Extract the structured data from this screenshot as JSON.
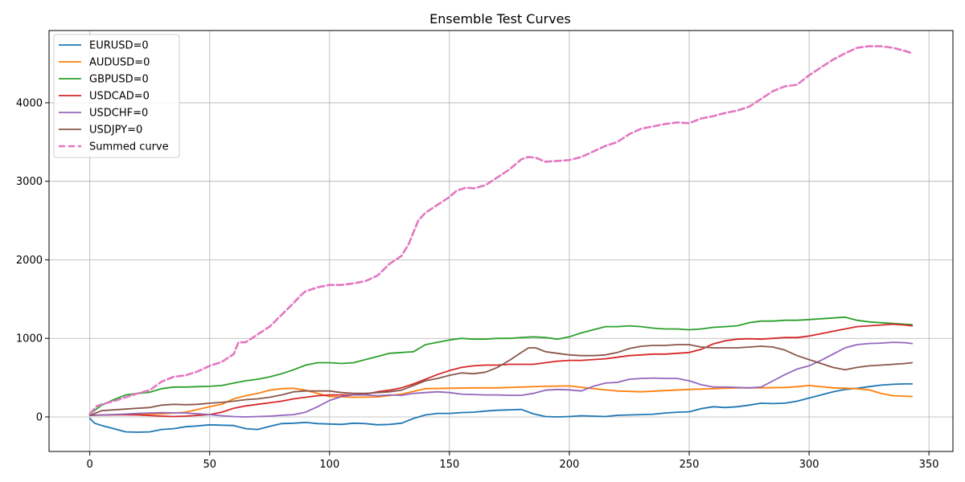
{
  "chart_data": {
    "type": "line",
    "title": "Ensemble Test Curves",
    "xlabel": "",
    "ylabel": "",
    "xlim": [
      -17,
      360
    ],
    "ylim": [
      -440,
      4920
    ],
    "xticks": [
      0,
      50,
      100,
      150,
      200,
      250,
      300,
      350
    ],
    "yticks": [
      0,
      1000,
      2000,
      3000,
      4000
    ],
    "grid": true,
    "legend_position": "top-left",
    "series": [
      {
        "name": "EURUSD=0",
        "color": "#1f77b4",
        "style": "solid",
        "x": [
          0,
          2,
          5,
          10,
          15,
          20,
          25,
          30,
          35,
          40,
          45,
          50,
          55,
          60,
          65,
          70,
          75,
          80,
          85,
          90,
          95,
          100,
          105,
          110,
          115,
          120,
          125,
          130,
          135,
          140,
          145,
          150,
          155,
          160,
          165,
          170,
          175,
          180,
          185,
          190,
          195,
          200,
          205,
          210,
          215,
          220,
          225,
          230,
          235,
          240,
          245,
          250,
          255,
          260,
          265,
          270,
          275,
          280,
          285,
          290,
          295,
          300,
          305,
          310,
          315,
          320,
          325,
          330,
          335,
          340,
          343
        ],
        "y": [
          -20,
          -80,
          -110,
          -150,
          -190,
          -195,
          -190,
          -160,
          -150,
          -125,
          -115,
          -100,
          -105,
          -110,
          -150,
          -160,
          -120,
          -85,
          -80,
          -70,
          -85,
          -90,
          -95,
          -80,
          -85,
          -100,
          -95,
          -80,
          -20,
          25,
          45,
          45,
          55,
          60,
          75,
          85,
          90,
          95,
          40,
          5,
          0,
          5,
          15,
          10,
          5,
          20,
          25,
          30,
          35,
          50,
          60,
          65,
          105,
          130,
          120,
          130,
          150,
          175,
          170,
          175,
          200,
          240,
          280,
          320,
          350,
          365,
          385,
          405,
          415,
          420,
          420
        ]
      },
      {
        "name": "AUDUSD=0",
        "color": "#ff7f0e",
        "style": "solid",
        "x": [
          0,
          10,
          20,
          30,
          40,
          50,
          55,
          60,
          65,
          70,
          75,
          80,
          85,
          90,
          95,
          100,
          110,
          120,
          130,
          140,
          150,
          160,
          170,
          180,
          190,
          200,
          210,
          220,
          230,
          240,
          250,
          260,
          270,
          280,
          290,
          295,
          300,
          310,
          320,
          325,
          330,
          335,
          343
        ],
        "y": [
          20,
          25,
          35,
          40,
          60,
          130,
          160,
          230,
          270,
          300,
          340,
          360,
          365,
          340,
          300,
          260,
          250,
          255,
          290,
          360,
          365,
          370,
          370,
          380,
          390,
          395,
          360,
          330,
          320,
          335,
          350,
          360,
          370,
          370,
          375,
          385,
          400,
          370,
          360,
          345,
          300,
          270,
          260
        ]
      },
      {
        "name": "GBPUSD=0",
        "color": "#2ca02c",
        "style": "solid",
        "x": [
          0,
          5,
          10,
          15,
          20,
          25,
          30,
          35,
          40,
          45,
          50,
          55,
          60,
          65,
          70,
          75,
          80,
          85,
          90,
          95,
          100,
          105,
          110,
          115,
          120,
          125,
          130,
          135,
          140,
          145,
          150,
          155,
          160,
          165,
          170,
          175,
          180,
          185,
          190,
          195,
          200,
          205,
          210,
          215,
          220,
          225,
          230,
          235,
          240,
          245,
          250,
          255,
          260,
          265,
          270,
          275,
          280,
          285,
          290,
          295,
          300,
          305,
          310,
          315,
          320,
          325,
          330,
          335,
          340,
          343
        ],
        "y": [
          40,
          150,
          220,
          280,
          300,
          315,
          360,
          380,
          380,
          385,
          390,
          400,
          430,
          460,
          480,
          510,
          550,
          600,
          660,
          690,
          690,
          680,
          690,
          730,
          770,
          810,
          820,
          830,
          920,
          950,
          980,
          1000,
          990,
          990,
          1000,
          1000,
          1010,
          1020,
          1010,
          990,
          1020,
          1070,
          1110,
          1150,
          1150,
          1160,
          1150,
          1130,
          1120,
          1120,
          1110,
          1120,
          1140,
          1150,
          1160,
          1200,
          1220,
          1220,
          1230,
          1230,
          1240,
          1250,
          1260,
          1270,
          1230,
          1210,
          1200,
          1190,
          1180,
          1175
        ]
      },
      {
        "name": "USDCAD=0",
        "color": "#d62728",
        "style": "solid",
        "x": [
          0,
          10,
          20,
          30,
          35,
          40,
          50,
          55,
          60,
          65,
          70,
          75,
          80,
          85,
          90,
          95,
          100,
          105,
          110,
          115,
          120,
          125,
          130,
          135,
          140,
          145,
          150,
          155,
          160,
          165,
          170,
          175,
          180,
          185,
          190,
          195,
          200,
          205,
          210,
          215,
          220,
          225,
          230,
          235,
          240,
          245,
          250,
          255,
          260,
          265,
          270,
          275,
          280,
          285,
          290,
          295,
          300,
          305,
          310,
          315,
          320,
          325,
          330,
          335,
          340,
          343
        ],
        "y": [
          20,
          30,
          25,
          10,
          5,
          10,
          30,
          60,
          110,
          140,
          160,
          180,
          200,
          230,
          250,
          270,
          280,
          280,
          280,
          290,
          320,
          340,
          370,
          420,
          480,
          540,
          590,
          630,
          650,
          660,
          660,
          670,
          670,
          670,
          690,
          710,
          720,
          720,
          730,
          740,
          760,
          780,
          790,
          800,
          800,
          810,
          820,
          860,
          930,
          970,
          990,
          995,
          990,
          1000,
          1010,
          1010,
          1030,
          1060,
          1090,
          1120,
          1150,
          1160,
          1170,
          1180,
          1170,
          1160
        ]
      },
      {
        "name": "USDCHF=0",
        "color": "#9467bd",
        "style": "solid",
        "x": [
          0,
          10,
          20,
          30,
          40,
          50,
          55,
          60,
          65,
          70,
          75,
          80,
          85,
          90,
          95,
          100,
          105,
          110,
          115,
          120,
          125,
          130,
          135,
          140,
          145,
          150,
          155,
          160,
          165,
          170,
          175,
          180,
          185,
          190,
          195,
          200,
          205,
          210,
          215,
          220,
          225,
          230,
          235,
          240,
          245,
          250,
          255,
          260,
          265,
          270,
          275,
          280,
          285,
          290,
          295,
          300,
          305,
          310,
          315,
          320,
          325,
          330,
          335,
          340,
          343
        ],
        "y": [
          20,
          30,
          45,
          55,
          50,
          30,
          15,
          5,
          0,
          5,
          10,
          20,
          30,
          60,
          130,
          210,
          260,
          280,
          280,
          270,
          280,
          275,
          300,
          310,
          320,
          310,
          290,
          285,
          280,
          280,
          275,
          275,
          300,
          340,
          350,
          345,
          330,
          390,
          430,
          440,
          480,
          490,
          495,
          490,
          490,
          460,
          410,
          380,
          380,
          375,
          370,
          380,
          460,
          540,
          610,
          650,
          720,
          800,
          880,
          920,
          935,
          940,
          950,
          945,
          935
        ]
      },
      {
        "name": "USDJPY=0",
        "color": "#8c564b",
        "style": "solid",
        "x": [
          0,
          5,
          10,
          15,
          20,
          25,
          30,
          35,
          40,
          45,
          50,
          55,
          60,
          65,
          70,
          75,
          80,
          85,
          90,
          95,
          100,
          105,
          110,
          115,
          120,
          125,
          130,
          135,
          140,
          145,
          150,
          155,
          160,
          165,
          170,
          175,
          180,
          183,
          186,
          190,
          195,
          200,
          205,
          210,
          215,
          220,
          225,
          230,
          235,
          240,
          245,
          250,
          255,
          260,
          265,
          270,
          275,
          280,
          285,
          290,
          295,
          300,
          305,
          310,
          315,
          320,
          325,
          330,
          335,
          340,
          343
        ],
        "y": [
          20,
          80,
          90,
          100,
          110,
          120,
          150,
          160,
          155,
          160,
          175,
          185,
          200,
          220,
          230,
          250,
          280,
          320,
          330,
          330,
          330,
          310,
          300,
          300,
          310,
          320,
          340,
          400,
          460,
          490,
          530,
          560,
          550,
          570,
          630,
          720,
          820,
          880,
          880,
          830,
          810,
          790,
          780,
          780,
          790,
          820,
          870,
          900,
          910,
          910,
          920,
          920,
          890,
          880,
          880,
          880,
          890,
          900,
          890,
          850,
          780,
          730,
          680,
          630,
          600,
          630,
          650,
          660,
          670,
          680,
          690
        ]
      },
      {
        "name": "Summed curve",
        "color": "#e377c2",
        "style": "dashed",
        "x": [
          0,
          3,
          6,
          10,
          15,
          20,
          25,
          30,
          35,
          40,
          45,
          50,
          55,
          60,
          62,
          65,
          70,
          75,
          80,
          85,
          88,
          90,
          95,
          100,
          105,
          110,
          115,
          120,
          125,
          130,
          133,
          137,
          140,
          145,
          150,
          153,
          157,
          160,
          165,
          170,
          175,
          180,
          183,
          186,
          190,
          195,
          200,
          205,
          210,
          215,
          220,
          225,
          230,
          235,
          240,
          245,
          250,
          255,
          260,
          265,
          270,
          275,
          280,
          285,
          290,
          295,
          300,
          305,
          310,
          315,
          320,
          325,
          330,
          335,
          340,
          343
        ],
        "y": [
          40,
          140,
          170,
          200,
          250,
          300,
          340,
          450,
          510,
          530,
          580,
          650,
          700,
          800,
          950,
          950,
          1050,
          1150,
          1300,
          1450,
          1550,
          1600,
          1650,
          1680,
          1680,
          1700,
          1730,
          1800,
          1950,
          2050,
          2200,
          2500,
          2600,
          2700,
          2800,
          2880,
          2920,
          2910,
          2950,
          3050,
          3150,
          3280,
          3310,
          3300,
          3250,
          3260,
          3270,
          3310,
          3380,
          3450,
          3500,
          3600,
          3670,
          3700,
          3730,
          3750,
          3740,
          3800,
          3830,
          3870,
          3900,
          3950,
          4050,
          4150,
          4210,
          4230,
          4350,
          4450,
          4550,
          4630,
          4700,
          4720,
          4720,
          4700,
          4660,
          4630
        ]
      }
    ]
  }
}
